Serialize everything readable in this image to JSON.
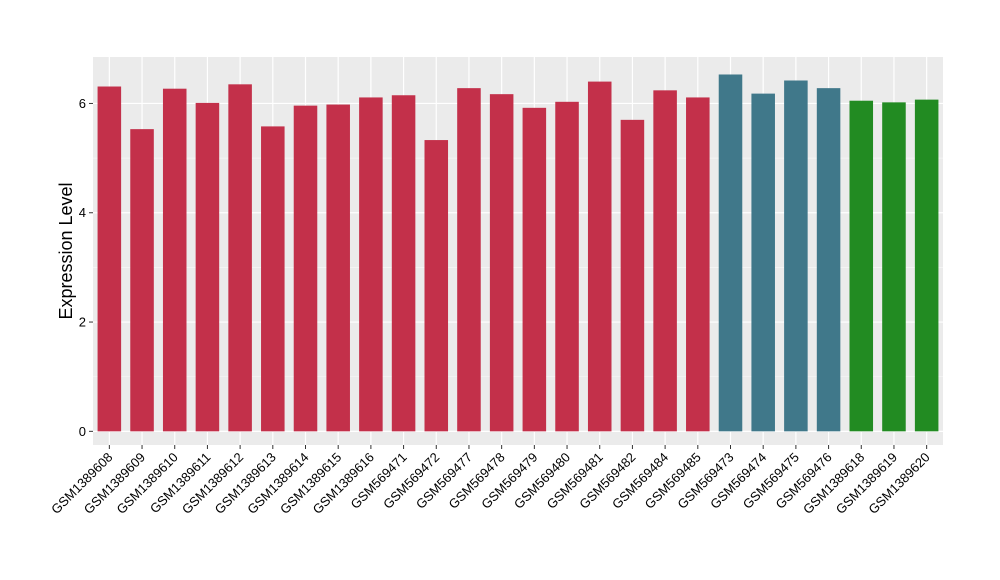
{
  "chart_data": {
    "type": "bar",
    "ylabel": "Expression Level",
    "xlabel": "",
    "ylim": [
      -0.25,
      6.85
    ],
    "yticks": [
      0,
      2,
      4,
      6
    ],
    "grid": true,
    "background": "#ebebeb",
    "categories": [
      "GSM1389608",
      "GSM1389609",
      "GSM1389610",
      "GSM1389611",
      "GSM1389612",
      "GSM1389613",
      "GSM1389614",
      "GSM1389615",
      "GSM1389616",
      "GSM569471",
      "GSM569472",
      "GSM569477",
      "GSM569478",
      "GSM569479",
      "GSM569480",
      "GSM569481",
      "GSM569482",
      "GSM569484",
      "GSM569485",
      "GSM569473",
      "GSM569474",
      "GSM569475",
      "GSM569476",
      "GSM1389618",
      "GSM1389619",
      "GSM1389620"
    ],
    "values": [
      6.31,
      5.53,
      6.27,
      6.01,
      6.35,
      5.58,
      5.96,
      5.98,
      6.11,
      6.15,
      5.33,
      6.28,
      6.17,
      5.92,
      6.03,
      6.4,
      5.7,
      6.24,
      6.11,
      6.53,
      6.18,
      6.42,
      6.28,
      6.05,
      6.02,
      6.07
    ],
    "colors": [
      "#c3304a",
      "#c3304a",
      "#c3304a",
      "#c3304a",
      "#c3304a",
      "#c3304a",
      "#c3304a",
      "#c3304a",
      "#c3304a",
      "#c3304a",
      "#c3304a",
      "#c3304a",
      "#c3304a",
      "#c3304a",
      "#c3304a",
      "#c3304a",
      "#c3304a",
      "#c3304a",
      "#c3304a",
      "#40788a",
      "#40788a",
      "#40788a",
      "#40788a",
      "#228b22",
      "#228b22",
      "#228b22"
    ]
  }
}
